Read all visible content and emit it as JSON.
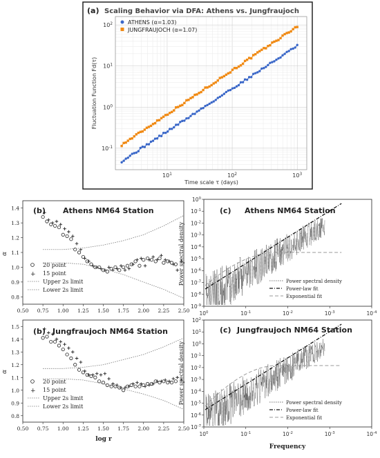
{
  "chart_data": [
    {
      "panel": "(a)",
      "type": "scatter",
      "title": "Scaling Behavior via DFA: Athens vs. Jungfraujoch",
      "xlabel": "Time scale τ (days)",
      "ylabel": "Fluctuation Function Fd(τ)",
      "xscale": "log",
      "yscale": "log",
      "xlim": [
        1.6,
        1400
      ],
      "ylim": [
        0.03,
        160
      ],
      "xticks": [
        "10^1",
        "10^2",
        "10^3"
      ],
      "yticks": [
        "10^-1",
        "10^0",
        "10^1",
        "10^2"
      ],
      "grid": true,
      "legend_position": "top-left",
      "series": [
        {
          "name": "ATHENS (α=1.03)",
          "color": "#3a67c8",
          "marker": "circle",
          "x_range": [
            2,
            1000
          ],
          "y_range": [
            0.048,
            31
          ],
          "points": 85
        },
        {
          "name": "JUNGFRAUJOCH (α=1.07)",
          "color": "#f08a14",
          "marker": "square",
          "x_range": [
            2,
            1000
          ],
          "y_range": [
            0.12,
            92
          ],
          "points": 85
        }
      ]
    },
    {
      "panel": "(b)",
      "station": "Athens NM64 Station",
      "type": "scatter",
      "xlabel": "",
      "ylabel": "α",
      "xlim": [
        0.5,
        2.5
      ],
      "ylim": [
        0.75,
        1.45
      ],
      "xticks": [
        "0.50",
        "0.75",
        "1.00",
        "1.25",
        "1.50",
        "1.75",
        "2.00",
        "2.25",
        "2.50"
      ],
      "yticks": [
        "0.8",
        "0.9",
        "1.0",
        "1.1",
        "1.2",
        "1.3",
        "1.4"
      ],
      "legend": [
        "20 point",
        "15 point",
        "Upper 2s limit",
        "Lower 2s limit"
      ],
      "series": [
        {
          "name": "20 point",
          "marker": "circle",
          "x": [
            0.75,
            0.8,
            0.85,
            0.9,
            0.95,
            1.0,
            1.05,
            1.1,
            1.15,
            1.2,
            1.25,
            1.3,
            1.35,
            1.4,
            1.45,
            1.5,
            1.55,
            1.6,
            1.65,
            1.7,
            1.75,
            1.8,
            1.85,
            1.9,
            1.95,
            2.0,
            2.05,
            2.1,
            2.15,
            2.2,
            2.25,
            2.3,
            2.35,
            2.4
          ],
          "y": [
            1.34,
            1.31,
            1.29,
            1.28,
            1.27,
            1.22,
            1.21,
            1.19,
            1.12,
            1.1,
            1.07,
            1.04,
            1.02,
            1.0,
            1.0,
            0.98,
            0.97,
            0.99,
            1.0,
            0.98,
            1.0,
            1.01,
            1.02,
            1.04,
            1.01,
            1.05,
            1.06,
            1.05,
            1.04,
            1.06,
            1.03,
            1.04,
            1.03,
            1.02
          ]
        },
        {
          "name": "15 point",
          "marker": "plus",
          "x": [
            0.77,
            0.82,
            0.87,
            0.92,
            0.97,
            1.02,
            1.07,
            1.12,
            1.17,
            1.22,
            1.27,
            1.32,
            1.37,
            1.42,
            1.47,
            1.52,
            1.57,
            1.62,
            1.67,
            1.72,
            1.77,
            1.82,
            1.87,
            1.92,
            1.97,
            2.02,
            2.07,
            2.12,
            2.17,
            2.22,
            2.27,
            2.32,
            2.37,
            2.42,
            2.47
          ],
          "y": [
            1.37,
            1.32,
            1.3,
            1.31,
            1.29,
            1.26,
            1.24,
            1.21,
            1.16,
            1.12,
            1.06,
            1.04,
            1.01,
            1.0,
            0.99,
            0.98,
            1.0,
            0.98,
            0.99,
            1.01,
            0.98,
            0.99,
            1.02,
            1.05,
            1.06,
            1.01,
            1.05,
            1.07,
            1.05,
            1.08,
            1.05,
            1.04,
            1.02,
            0.98,
            1.04
          ]
        },
        {
          "name": "Upper 2s limit",
          "line": "dotted",
          "x": [
            0.75,
            1.0,
            1.25,
            1.5,
            1.75,
            2.0,
            2.25,
            2.5
          ],
          "y": [
            1.12,
            1.12,
            1.13,
            1.15,
            1.18,
            1.22,
            1.28,
            1.35
          ]
        },
        {
          "name": "Lower 2s limit",
          "line": "dotted",
          "x": [
            0.75,
            1.0,
            1.25,
            1.5,
            1.75,
            2.0,
            2.25,
            2.5
          ],
          "y": [
            1.03,
            1.03,
            1.02,
            0.99,
            0.95,
            0.9,
            0.85,
            0.79
          ]
        }
      ]
    },
    {
      "panel": "(c)",
      "station": "Athens NM64 Station",
      "type": "line",
      "xlabel": "",
      "ylabel": "Power spectral density",
      "xscale": "log",
      "yscale": "log",
      "xticks": [
        "10^0",
        "10^-1",
        "10^-2",
        "10^-3",
        "10^-4"
      ],
      "yticks": [
        "10^0",
        "10^-1",
        "10^-2",
        "10^-3",
        "10^-4",
        "10^-5",
        "10^-6",
        "10^-7",
        "10^-8",
        "10^-9"
      ],
      "legend": [
        "Power spectral density",
        "Power-law fit",
        "Exponential fit"
      ]
    },
    {
      "panel": "(b)",
      "station": "Jungfraujoch NM64 Station",
      "type": "scatter",
      "xlabel": "log r",
      "ylabel": "α",
      "xlim": [
        0.5,
        2.5
      ],
      "ylim": [
        0.75,
        1.55
      ],
      "xticks": [
        "0.50",
        "0.75",
        "1.00",
        "1.25",
        "1.50",
        "1.75",
        "2.00",
        "2.25",
        "2.50"
      ],
      "yticks": [
        "0.8",
        "0.9",
        "1.0",
        "1.1",
        "1.2",
        "1.3",
        "1.4",
        "1.5"
      ],
      "legend": [
        "20 point",
        "15 point",
        "Upper 2s limit",
        "Lower 2s limit"
      ],
      "series": [
        {
          "name": "20 point",
          "marker": "circle",
          "x": [
            0.75,
            0.8,
            0.85,
            0.9,
            0.95,
            1.0,
            1.05,
            1.1,
            1.15,
            1.2,
            1.25,
            1.3,
            1.35,
            1.4,
            1.45,
            1.5,
            1.55,
            1.6,
            1.65,
            1.7,
            1.75,
            1.8,
            1.85,
            1.9,
            1.95,
            2.0,
            2.05,
            2.1,
            2.15,
            2.2,
            2.25,
            2.3,
            2.35,
            2.4
          ],
          "y": [
            1.41,
            1.42,
            1.38,
            1.38,
            1.35,
            1.32,
            1.28,
            1.25,
            1.2,
            1.16,
            1.14,
            1.12,
            1.11,
            1.1,
            1.07,
            1.06,
            1.04,
            1.03,
            1.03,
            1.02,
            1.0,
            1.03,
            1.04,
            1.03,
            1.03,
            1.04,
            1.05,
            1.05,
            1.07,
            1.06,
            1.07,
            1.06,
            1.06,
            1.07
          ]
        },
        {
          "name": "15 point",
          "marker": "plus",
          "x": [
            0.77,
            0.82,
            0.87,
            0.92,
            0.97,
            1.02,
            1.07,
            1.12,
            1.17,
            1.22,
            1.27,
            1.32,
            1.37,
            1.42,
            1.47,
            1.52,
            1.57,
            1.62,
            1.67,
            1.72,
            1.77,
            1.82,
            1.87,
            1.92,
            1.97,
            2.02,
            2.07,
            2.12,
            2.17,
            2.22,
            2.27,
            2.32,
            2.37,
            2.42,
            2.47
          ],
          "y": [
            1.48,
            1.45,
            1.44,
            1.4,
            1.38,
            1.36,
            1.33,
            1.3,
            1.25,
            1.22,
            1.15,
            1.12,
            1.12,
            1.13,
            1.12,
            1.13,
            1.09,
            1.05,
            1.04,
            1.02,
            1.02,
            1.03,
            1.05,
            1.06,
            1.05,
            1.03,
            1.04,
            1.05,
            1.07,
            1.07,
            1.08,
            1.07,
            1.09,
            1.1,
            1.08
          ]
        },
        {
          "name": "Upper 2s limit",
          "line": "dotted",
          "x": [
            0.75,
            1.0,
            1.25,
            1.5,
            1.75,
            2.0,
            2.25,
            2.5
          ],
          "y": [
            1.17,
            1.17,
            1.18,
            1.2,
            1.24,
            1.28,
            1.34,
            1.41
          ]
        },
        {
          "name": "Lower 2s limit",
          "line": "dotted",
          "x": [
            0.75,
            1.0,
            1.25,
            1.5,
            1.75,
            2.0,
            2.25,
            2.5
          ],
          "y": [
            1.09,
            1.09,
            1.08,
            1.05,
            1.01,
            0.97,
            0.92,
            0.85
          ]
        }
      ]
    },
    {
      "panel": "(c)",
      "station": "Jungfraujoch NM64 Station",
      "type": "line",
      "xlabel": "Frequency",
      "ylabel": "Power spectral density",
      "xscale": "log",
      "yscale": "log",
      "xticks": [
        "10^0",
        "10^-1",
        "10^-2",
        "10^-3",
        "10^-4"
      ],
      "yticks": [
        "10^2",
        "10^1",
        "10^0",
        "10^-1",
        "10^-2",
        "10^-3",
        "10^-4",
        "10^-5",
        "10^-6",
        "10^-7"
      ],
      "legend": [
        "Power spectral density",
        "Power-law fit",
        "Exponential fit"
      ]
    }
  ]
}
